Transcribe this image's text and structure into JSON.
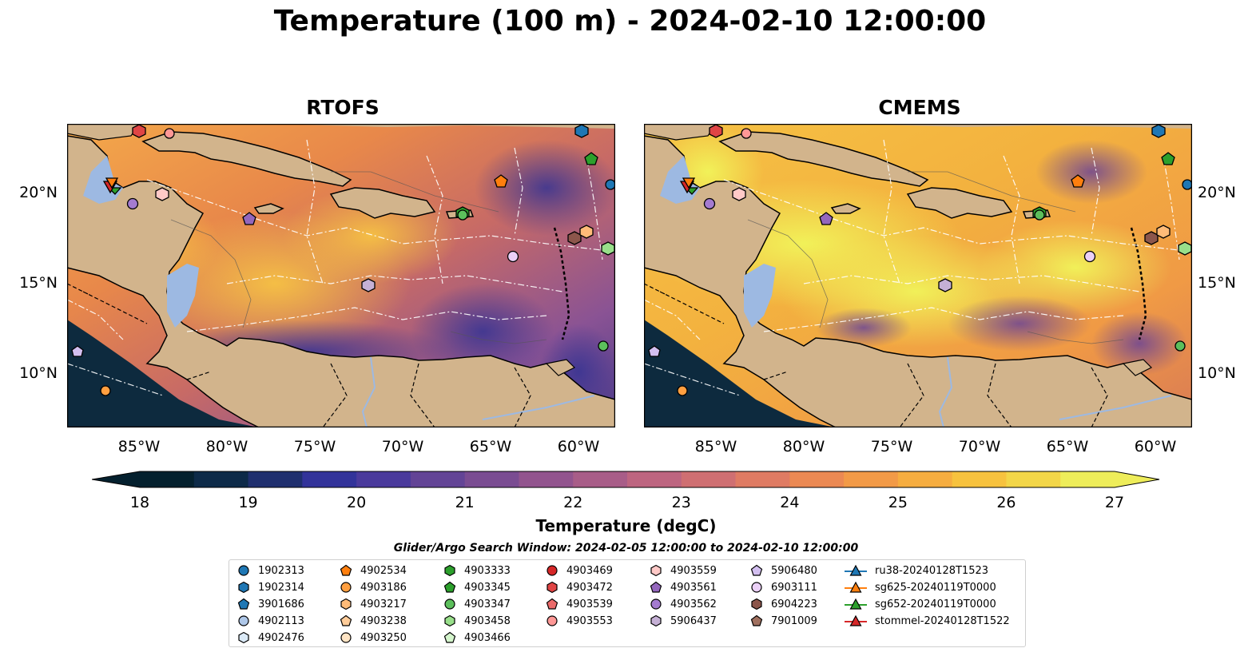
{
  "title": "Temperature (100 m) - 2024-02-10 12:00:00",
  "panels": [
    {
      "id": "left",
      "title": "RTOFS"
    },
    {
      "id": "right",
      "title": "CMEMS"
    }
  ],
  "axes": {
    "lat_ticks": [
      "20°N",
      "15°N",
      "10°N"
    ],
    "lon_ticks": [
      "85°W",
      "80°W",
      "75°W",
      "70°W",
      "65°W",
      "60°W"
    ]
  },
  "colorbar": {
    "label": "Temperature (degC)",
    "ticks": [
      "18",
      "19",
      "20",
      "21",
      "22",
      "23",
      "24",
      "25",
      "26",
      "27"
    ],
    "range": [
      18,
      27
    ],
    "extend": "both",
    "colormap": "thermal"
  },
  "legend": {
    "title": "Glider/Argo Search Window: 2024-02-05 12:00:00 to 2024-02-10 12:00:00",
    "columns": [
      [
        {
          "label": "1902313",
          "marker": "circle",
          "color": "#1f77b4"
        },
        {
          "label": "1902314",
          "marker": "hexagon",
          "color": "#1f77b4"
        },
        {
          "label": "3901686",
          "marker": "pentagon",
          "color": "#1f77b4"
        },
        {
          "label": "4902113",
          "marker": "circle",
          "color": "#aec7e8"
        },
        {
          "label": "4902476",
          "marker": "hexagon",
          "color": "#dbeaf7"
        }
      ],
      [
        {
          "label": "4902534",
          "marker": "pentagon",
          "color": "#ff7f0e"
        },
        {
          "label": "4903186",
          "marker": "circle",
          "color": "#ff9f40"
        },
        {
          "label": "4903217",
          "marker": "hexagon",
          "color": "#ffbb78"
        },
        {
          "label": "4903238",
          "marker": "pentagon",
          "color": "#ffcc99"
        },
        {
          "label": "4903250",
          "marker": "circle",
          "color": "#ffe4c4"
        }
      ],
      [
        {
          "label": "4903333",
          "marker": "hexagon",
          "color": "#2ca02c"
        },
        {
          "label": "4903345",
          "marker": "pentagon",
          "color": "#2ca02c"
        },
        {
          "label": "4903347",
          "marker": "circle",
          "color": "#5cbf5c"
        },
        {
          "label": "4903458",
          "marker": "hexagon",
          "color": "#98df8a"
        },
        {
          "label": "4903466",
          "marker": "pentagon",
          "color": "#d4f5cc"
        }
      ],
      [
        {
          "label": "4903469",
          "marker": "circle",
          "color": "#d62728"
        },
        {
          "label": "4903472",
          "marker": "hexagon",
          "color": "#e04545"
        },
        {
          "label": "4903539",
          "marker": "pentagon",
          "color": "#eb6a6a"
        },
        {
          "label": "4903553",
          "marker": "circle",
          "color": "#ff9896"
        }
      ],
      [
        {
          "label": "4903559",
          "marker": "hexagon",
          "color": "#ffc9c7"
        },
        {
          "label": "4903561",
          "marker": "pentagon",
          "color": "#9467bd"
        },
        {
          "label": "4903562",
          "marker": "circle",
          "color": "#a47bd0"
        },
        {
          "label": "5906437",
          "marker": "hexagon",
          "color": "#c5b0d5"
        }
      ],
      [
        {
          "label": "5906480",
          "marker": "pentagon",
          "color": "#d3bff0"
        },
        {
          "label": "6903111",
          "marker": "circle",
          "color": "#ebd0f7"
        },
        {
          "label": "6904223",
          "marker": "hexagon",
          "color": "#8c564b"
        },
        {
          "label": "7901009",
          "marker": "pentagon",
          "color": "#a0705f"
        }
      ],
      [
        {
          "label": "ru38-20240128T1523",
          "marker": "triangle-line",
          "color": "#1f77b4"
        },
        {
          "label": "sg625-20240119T0000",
          "marker": "triangle-line",
          "color": "#ff7f0e"
        },
        {
          "label": "sg652-20240119T0000",
          "marker": "triangle-line",
          "color": "#2ca02c"
        },
        {
          "label": "stommel-20240128T1522",
          "marker": "triangle-line",
          "color": "#d62728"
        }
      ]
    ]
  }
}
